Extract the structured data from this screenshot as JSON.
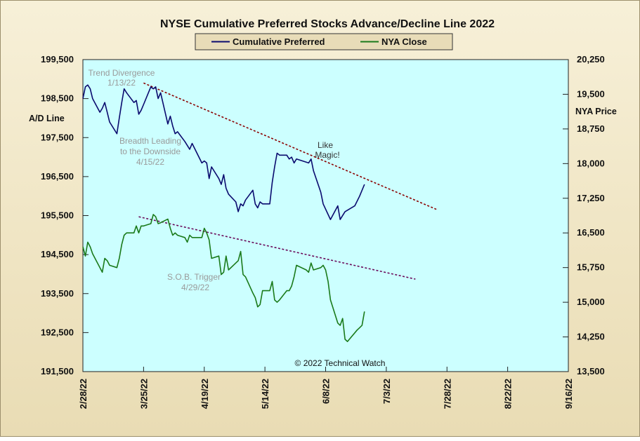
{
  "chart_data": {
    "type": "line",
    "title": "NYSE Cumulative  Preferred Stocks Advance/Decline  Line 2022",
    "ylabel_left": "A/D Line",
    "ylabel_right": "NYA Price",
    "xlabel": "",
    "grid": false,
    "legend_position": "top-center",
    "x_domain": [
      "2/28/22",
      "9/16/22"
    ],
    "x_ticks": [
      "2/28/22",
      "3/25/22",
      "4/19/22",
      "5/14/22",
      "6/8/22",
      "7/3/22",
      "7/28/22",
      "8/22/22",
      "9/16/22"
    ],
    "y_left": {
      "min": 191500,
      "max": 199500,
      "ticks": [
        "191,500",
        "192,500",
        "193,500",
        "194,500",
        "195,500",
        "196,500",
        "197,500",
        "198,500",
        "199,500"
      ]
    },
    "y_right": {
      "min": 13500,
      "max": 20250,
      "ticks": [
        "13,500",
        "14,250",
        "15,000",
        "15,750",
        "16,500",
        "17,250",
        "18,000",
        "18,750",
        "19,500",
        "20,250"
      ]
    },
    "series": [
      {
        "name": "Cumulative Preferred",
        "axis": "left",
        "color": "#0a0a6e",
        "points": [
          [
            "2/28/22",
            198500
          ],
          [
            "3/1/22",
            198800
          ],
          [
            "3/2/22",
            198850
          ],
          [
            "3/3/22",
            198750
          ],
          [
            "3/4/22",
            198500
          ],
          [
            "3/7/22",
            198150
          ],
          [
            "3/8/22",
            198250
          ],
          [
            "3/9/22",
            198400
          ],
          [
            "3/10/22",
            198150
          ],
          [
            "3/11/22",
            197900
          ],
          [
            "3/14/22",
            197600
          ],
          [
            "3/15/22",
            198000
          ],
          [
            "3/16/22",
            198400
          ],
          [
            "3/17/22",
            198750
          ],
          [
            "3/18/22",
            198650
          ],
          [
            "3/21/22",
            198400
          ],
          [
            "3/22/22",
            198450
          ],
          [
            "3/23/22",
            198100
          ],
          [
            "3/24/22",
            198200
          ],
          [
            "3/25/22",
            198350
          ],
          [
            "3/28/22",
            198800
          ],
          [
            "3/29/22",
            198750
          ],
          [
            "3/30/22",
            198800
          ],
          [
            "3/31/22",
            198500
          ],
          [
            "4/1/22",
            198650
          ],
          [
            "4/4/22",
            197850
          ],
          [
            "4/5/22",
            198050
          ],
          [
            "4/6/22",
            197800
          ],
          [
            "4/7/22",
            197600
          ],
          [
            "4/8/22",
            197650
          ],
          [
            "4/11/22",
            197400
          ],
          [
            "4/12/22",
            197300
          ],
          [
            "4/13/22",
            197200
          ],
          [
            "4/14/22",
            197350
          ],
          [
            "4/18/22",
            196850
          ],
          [
            "4/19/22",
            196900
          ],
          [
            "4/20/22",
            196850
          ],
          [
            "4/21/22",
            196450
          ],
          [
            "4/22/22",
            196750
          ],
          [
            "4/25/22",
            196450
          ],
          [
            "4/26/22",
            196300
          ],
          [
            "4/27/22",
            196550
          ],
          [
            "4/28/22",
            196200
          ],
          [
            "4/29/22",
            196050
          ],
          [
            "5/2/22",
            195850
          ],
          [
            "5/3/22",
            195600
          ],
          [
            "5/4/22",
            195800
          ],
          [
            "5/5/22",
            195750
          ],
          [
            "5/6/22",
            195900
          ],
          [
            "5/9/22",
            196150
          ],
          [
            "5/10/22",
            195800
          ],
          [
            "5/11/22",
            195700
          ],
          [
            "5/12/22",
            195850
          ],
          [
            "5/13/22",
            195800
          ],
          [
            "5/16/22",
            195800
          ],
          [
            "5/17/22",
            196350
          ],
          [
            "5/18/22",
            196750
          ],
          [
            "5/19/22",
            197100
          ],
          [
            "5/20/22",
            197050
          ],
          [
            "5/23/22",
            197050
          ],
          [
            "5/24/22",
            196950
          ],
          [
            "5/25/22",
            197000
          ],
          [
            "5/26/22",
            196850
          ],
          [
            "5/27/22",
            196950
          ],
          [
            "6/1/22",
            196850
          ],
          [
            "6/2/22",
            196950
          ],
          [
            "6/3/22",
            196650
          ],
          [
            "6/6/22",
            196100
          ],
          [
            "6/7/22",
            195800
          ],
          [
            "6/10/22",
            195400
          ],
          [
            "6/13/22",
            195750
          ],
          [
            "6/14/22",
            195400
          ],
          [
            "6/16/22",
            195600
          ],
          [
            "6/20/22",
            195750
          ],
          [
            "6/22/22",
            196000
          ],
          [
            "6/24/22",
            196300
          ]
        ]
      },
      {
        "name": "NYA Close",
        "axis": "right",
        "color": "#1a7a1a",
        "points": [
          [
            "2/28/22",
            16200
          ],
          [
            "3/1/22",
            16000
          ],
          [
            "3/2/22",
            16300
          ],
          [
            "3/3/22",
            16200
          ],
          [
            "3/4/22",
            16050
          ],
          [
            "3/7/22",
            15750
          ],
          [
            "3/8/22",
            15650
          ],
          [
            "3/9/22",
            15950
          ],
          [
            "3/10/22",
            15900
          ],
          [
            "3/11/22",
            15800
          ],
          [
            "3/14/22",
            15750
          ],
          [
            "3/15/22",
            15950
          ],
          [
            "3/16/22",
            16250
          ],
          [
            "3/17/22",
            16450
          ],
          [
            "3/18/22",
            16500
          ],
          [
            "3/21/22",
            16500
          ],
          [
            "3/22/22",
            16650
          ],
          [
            "3/23/22",
            16500
          ],
          [
            "3/24/22",
            16650
          ],
          [
            "3/25/22",
            16650
          ],
          [
            "3/28/22",
            16700
          ],
          [
            "3/29/22",
            16900
          ],
          [
            "3/30/22",
            16850
          ],
          [
            "3/31/22",
            16700
          ],
          [
            "4/1/22",
            16720
          ],
          [
            "4/4/22",
            16800
          ],
          [
            "4/5/22",
            16600
          ],
          [
            "4/6/22",
            16450
          ],
          [
            "4/7/22",
            16500
          ],
          [
            "4/8/22",
            16450
          ],
          [
            "4/11/22",
            16400
          ],
          [
            "4/12/22",
            16300
          ],
          [
            "4/13/22",
            16450
          ],
          [
            "4/14/22",
            16400
          ],
          [
            "4/18/22",
            16400
          ],
          [
            "4/19/22",
            16600
          ],
          [
            "4/20/22",
            16500
          ],
          [
            "4/21/22",
            16350
          ],
          [
            "4/22/22",
            15950
          ],
          [
            "4/25/22",
            16000
          ],
          [
            "4/26/22",
            15600
          ],
          [
            "4/27/22",
            15650
          ],
          [
            "4/28/22",
            16000
          ],
          [
            "4/29/22",
            15700
          ],
          [
            "5/2/22",
            15850
          ],
          [
            "5/3/22",
            15900
          ],
          [
            "5/4/22",
            16100
          ],
          [
            "5/5/22",
            15600
          ],
          [
            "5/6/22",
            15550
          ],
          [
            "5/9/22",
            15200
          ],
          [
            "5/10/22",
            15100
          ],
          [
            "5/11/22",
            14900
          ],
          [
            "5/12/22",
            14950
          ],
          [
            "5/13/22",
            15250
          ],
          [
            "5/16/22",
            15250
          ],
          [
            "5/17/22",
            15450
          ],
          [
            "5/18/22",
            15050
          ],
          [
            "5/19/22",
            15000
          ],
          [
            "5/20/22",
            15050
          ],
          [
            "5/23/22",
            15250
          ],
          [
            "5/24/22",
            15250
          ],
          [
            "5/25/22",
            15350
          ],
          [
            "5/26/22",
            15550
          ],
          [
            "5/27/22",
            15800
          ],
          [
            "5/31/22",
            15700
          ],
          [
            "6/1/22",
            15650
          ],
          [
            "6/2/22",
            15850
          ],
          [
            "6/3/22",
            15700
          ],
          [
            "6/6/22",
            15750
          ],
          [
            "6/7/22",
            15800
          ],
          [
            "6/8/22",
            15700
          ],
          [
            "6/9/22",
            15450
          ],
          [
            "6/10/22",
            15050
          ],
          [
            "6/13/22",
            14550
          ],
          [
            "6/14/22",
            14500
          ],
          [
            "6/15/22",
            14650
          ],
          [
            "6/16/22",
            14200
          ],
          [
            "6/17/22",
            14150
          ],
          [
            "6/21/22",
            14400
          ],
          [
            "6/22/22",
            14450
          ],
          [
            "6/23/22",
            14500
          ],
          [
            "6/24/22",
            14800
          ]
        ]
      }
    ],
    "trendlines": [
      {
        "axis": "left",
        "color": "#8b0000",
        "from": [
          "3/25/22",
          198900
        ],
        "to": [
          "7/24/22",
          195650
        ]
      },
      {
        "axis": "right",
        "color": "#6a0a5a",
        "from": [
          "3/23/22",
          16850
        ],
        "to": [
          "7/15/22",
          15500
        ]
      }
    ]
  },
  "annotations": {
    "trend_divergence": [
      "Trend  Divergence",
      "1/13/22"
    ],
    "breadth": [
      "Breadth Leading",
      "to the Downside",
      "4/15/22"
    ],
    "like_magic": [
      "Like",
      "Magic!"
    ],
    "sob": [
      "S.O.B. Trigger",
      "4/29/22"
    ]
  },
  "copyright": "© 2022 Technical Watch"
}
